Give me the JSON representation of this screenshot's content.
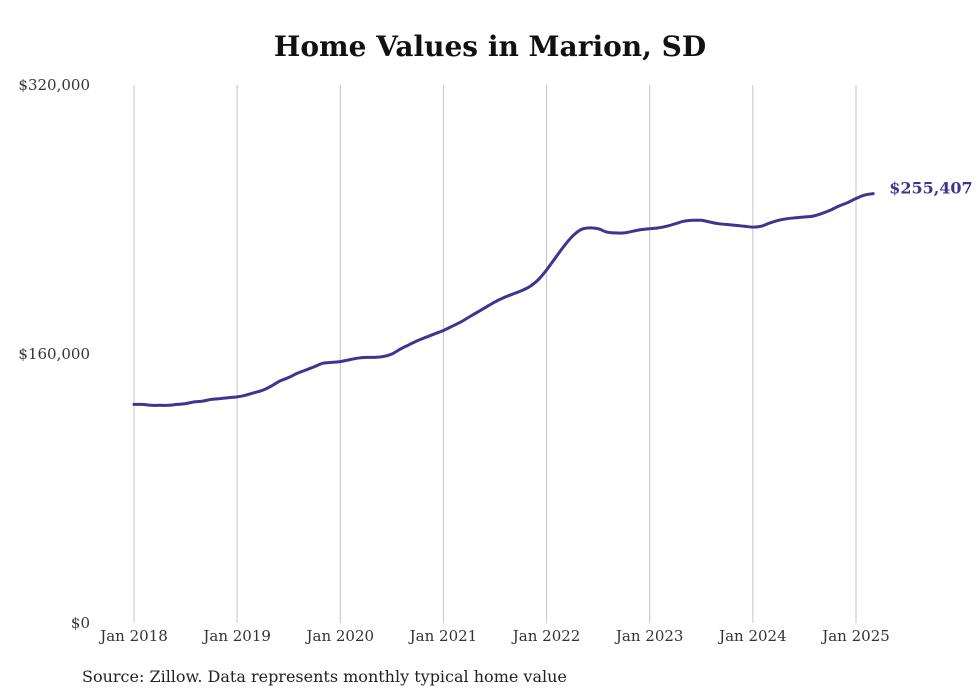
{
  "chart_data": {
    "type": "line",
    "title": "Home Values in Marion, SD",
    "source_note": "Source: Zillow. Data represents monthly typical home value",
    "xlabel": "",
    "ylabel": "",
    "ylim": [
      0,
      320000
    ],
    "y_ticks": [
      {
        "value": 0,
        "label": "$0"
      },
      {
        "value": 160000,
        "label": "$160,000"
      },
      {
        "value": 320000,
        "label": "$320,000"
      }
    ],
    "x_ticks": [
      {
        "value": 2018,
        "label": "Jan 2018"
      },
      {
        "value": 2019,
        "label": "Jan 2019"
      },
      {
        "value": 2020,
        "label": "Jan 2020"
      },
      {
        "value": 2021,
        "label": "Jan 2021"
      },
      {
        "value": 2022,
        "label": "Jan 2022"
      },
      {
        "value": 2023,
        "label": "Jan 2023"
      },
      {
        "value": 2024,
        "label": "Jan 2024"
      },
      {
        "value": 2025,
        "label": "Jan 2025"
      }
    ],
    "xlim": [
      2018,
      2025.2
    ],
    "grid": "vertical",
    "line_color": "#3d3590",
    "end_label": "$255,407",
    "series": [
      {
        "x": [
          "2018-01",
          "2018-02",
          "2018-03",
          "2018-04",
          "2018-05",
          "2018-06",
          "2018-07",
          "2018-08",
          "2018-09",
          "2018-10",
          "2018-11",
          "2018-12",
          "2019-01",
          "2019-02",
          "2019-03",
          "2019-04",
          "2019-05",
          "2019-06",
          "2019-07",
          "2019-08",
          "2019-09",
          "2019-10",
          "2019-11",
          "2019-12",
          "2020-01",
          "2020-02",
          "2020-03",
          "2020-04",
          "2020-05",
          "2020-06",
          "2020-07",
          "2020-08",
          "2020-09",
          "2020-10",
          "2020-11",
          "2020-12",
          "2021-01",
          "2021-02",
          "2021-03",
          "2021-04",
          "2021-05",
          "2021-06",
          "2021-07",
          "2021-08",
          "2021-09",
          "2021-10",
          "2021-11",
          "2021-12",
          "2022-01",
          "2022-02",
          "2022-03",
          "2022-04",
          "2022-05",
          "2022-06",
          "2022-07",
          "2022-08",
          "2022-09",
          "2022-10",
          "2022-11",
          "2022-12",
          "2023-01",
          "2023-02",
          "2023-03",
          "2023-04",
          "2023-05",
          "2023-06",
          "2023-07",
          "2023-08",
          "2023-09",
          "2023-10",
          "2023-11",
          "2023-12",
          "2024-01",
          "2024-02",
          "2024-03",
          "2024-04",
          "2024-05",
          "2024-06",
          "2024-07",
          "2024-08",
          "2024-09",
          "2024-10",
          "2024-11",
          "2024-12",
          "2025-01",
          "2025-02",
          "2025-03"
        ],
        "y": [
          130000,
          130000,
          129500,
          129500,
          129500,
          130000,
          130500,
          131500,
          132000,
          133000,
          133500,
          134000,
          134500,
          135500,
          137000,
          138500,
          141000,
          144000,
          146000,
          148500,
          150500,
          152500,
          154500,
          155000,
          155500,
          156500,
          157500,
          158000,
          158000,
          158500,
          160000,
          163000,
          165500,
          168000,
          170000,
          172000,
          174000,
          176500,
          179000,
          182000,
          185000,
          188000,
          191000,
          193500,
          195500,
          197500,
          200000,
          204000,
          210000,
          217000,
          224000,
          230000,
          234000,
          235000,
          234500,
          232500,
          232000,
          232000,
          233000,
          234000,
          234500,
          235000,
          236000,
          237500,
          239000,
          239500,
          239500,
          238500,
          237500,
          237000,
          236500,
          236000,
          235500,
          236000,
          238000,
          239500,
          240500,
          241000,
          241500,
          242000,
          243500,
          245500,
          248000,
          250000,
          252500,
          254500,
          255407
        ]
      }
    ]
  }
}
